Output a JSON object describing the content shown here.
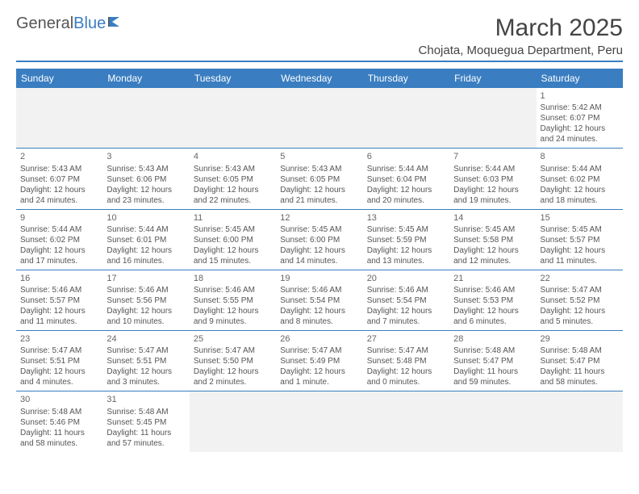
{
  "logo": {
    "text1": "General",
    "text2": "Blue",
    "accent_color": "#3a7ec1"
  },
  "title": "March 2025",
  "subtitle": "Chojata, Moquegua Department, Peru",
  "weekday_header_bg": "#3a7ec1",
  "weekday_header_fg": "#ffffff",
  "weekdays": [
    "Sunday",
    "Monday",
    "Tuesday",
    "Wednesday",
    "Thursday",
    "Friday",
    "Saturday"
  ],
  "blank_bg": "#f2f2f2",
  "border_color": "#3a7ec1",
  "cells": [
    [
      {
        "day": "",
        "lines": []
      },
      {
        "day": "",
        "lines": []
      },
      {
        "day": "",
        "lines": []
      },
      {
        "day": "",
        "lines": []
      },
      {
        "day": "",
        "lines": []
      },
      {
        "day": "",
        "lines": []
      },
      {
        "day": "1",
        "lines": [
          "Sunrise: 5:42 AM",
          "Sunset: 6:07 PM",
          "Daylight: 12 hours",
          "and 24 minutes."
        ]
      }
    ],
    [
      {
        "day": "2",
        "lines": [
          "Sunrise: 5:43 AM",
          "Sunset: 6:07 PM",
          "Daylight: 12 hours",
          "and 24 minutes."
        ]
      },
      {
        "day": "3",
        "lines": [
          "Sunrise: 5:43 AM",
          "Sunset: 6:06 PM",
          "Daylight: 12 hours",
          "and 23 minutes."
        ]
      },
      {
        "day": "4",
        "lines": [
          "Sunrise: 5:43 AM",
          "Sunset: 6:05 PM",
          "Daylight: 12 hours",
          "and 22 minutes."
        ]
      },
      {
        "day": "5",
        "lines": [
          "Sunrise: 5:43 AM",
          "Sunset: 6:05 PM",
          "Daylight: 12 hours",
          "and 21 minutes."
        ]
      },
      {
        "day": "6",
        "lines": [
          "Sunrise: 5:44 AM",
          "Sunset: 6:04 PM",
          "Daylight: 12 hours",
          "and 20 minutes."
        ]
      },
      {
        "day": "7",
        "lines": [
          "Sunrise: 5:44 AM",
          "Sunset: 6:03 PM",
          "Daylight: 12 hours",
          "and 19 minutes."
        ]
      },
      {
        "day": "8",
        "lines": [
          "Sunrise: 5:44 AM",
          "Sunset: 6:02 PM",
          "Daylight: 12 hours",
          "and 18 minutes."
        ]
      }
    ],
    [
      {
        "day": "9",
        "lines": [
          "Sunrise: 5:44 AM",
          "Sunset: 6:02 PM",
          "Daylight: 12 hours",
          "and 17 minutes."
        ]
      },
      {
        "day": "10",
        "lines": [
          "Sunrise: 5:44 AM",
          "Sunset: 6:01 PM",
          "Daylight: 12 hours",
          "and 16 minutes."
        ]
      },
      {
        "day": "11",
        "lines": [
          "Sunrise: 5:45 AM",
          "Sunset: 6:00 PM",
          "Daylight: 12 hours",
          "and 15 minutes."
        ]
      },
      {
        "day": "12",
        "lines": [
          "Sunrise: 5:45 AM",
          "Sunset: 6:00 PM",
          "Daylight: 12 hours",
          "and 14 minutes."
        ]
      },
      {
        "day": "13",
        "lines": [
          "Sunrise: 5:45 AM",
          "Sunset: 5:59 PM",
          "Daylight: 12 hours",
          "and 13 minutes."
        ]
      },
      {
        "day": "14",
        "lines": [
          "Sunrise: 5:45 AM",
          "Sunset: 5:58 PM",
          "Daylight: 12 hours",
          "and 12 minutes."
        ]
      },
      {
        "day": "15",
        "lines": [
          "Sunrise: 5:45 AM",
          "Sunset: 5:57 PM",
          "Daylight: 12 hours",
          "and 11 minutes."
        ]
      }
    ],
    [
      {
        "day": "16",
        "lines": [
          "Sunrise: 5:46 AM",
          "Sunset: 5:57 PM",
          "Daylight: 12 hours",
          "and 11 minutes."
        ]
      },
      {
        "day": "17",
        "lines": [
          "Sunrise: 5:46 AM",
          "Sunset: 5:56 PM",
          "Daylight: 12 hours",
          "and 10 minutes."
        ]
      },
      {
        "day": "18",
        "lines": [
          "Sunrise: 5:46 AM",
          "Sunset: 5:55 PM",
          "Daylight: 12 hours",
          "and 9 minutes."
        ]
      },
      {
        "day": "19",
        "lines": [
          "Sunrise: 5:46 AM",
          "Sunset: 5:54 PM",
          "Daylight: 12 hours",
          "and 8 minutes."
        ]
      },
      {
        "day": "20",
        "lines": [
          "Sunrise: 5:46 AM",
          "Sunset: 5:54 PM",
          "Daylight: 12 hours",
          "and 7 minutes."
        ]
      },
      {
        "day": "21",
        "lines": [
          "Sunrise: 5:46 AM",
          "Sunset: 5:53 PM",
          "Daylight: 12 hours",
          "and 6 minutes."
        ]
      },
      {
        "day": "22",
        "lines": [
          "Sunrise: 5:47 AM",
          "Sunset: 5:52 PM",
          "Daylight: 12 hours",
          "and 5 minutes."
        ]
      }
    ],
    [
      {
        "day": "23",
        "lines": [
          "Sunrise: 5:47 AM",
          "Sunset: 5:51 PM",
          "Daylight: 12 hours",
          "and 4 minutes."
        ]
      },
      {
        "day": "24",
        "lines": [
          "Sunrise: 5:47 AM",
          "Sunset: 5:51 PM",
          "Daylight: 12 hours",
          "and 3 minutes."
        ]
      },
      {
        "day": "25",
        "lines": [
          "Sunrise: 5:47 AM",
          "Sunset: 5:50 PM",
          "Daylight: 12 hours",
          "and 2 minutes."
        ]
      },
      {
        "day": "26",
        "lines": [
          "Sunrise: 5:47 AM",
          "Sunset: 5:49 PM",
          "Daylight: 12 hours",
          "and 1 minute."
        ]
      },
      {
        "day": "27",
        "lines": [
          "Sunrise: 5:47 AM",
          "Sunset: 5:48 PM",
          "Daylight: 12 hours",
          "and 0 minutes."
        ]
      },
      {
        "day": "28",
        "lines": [
          "Sunrise: 5:48 AM",
          "Sunset: 5:47 PM",
          "Daylight: 11 hours",
          "and 59 minutes."
        ]
      },
      {
        "day": "29",
        "lines": [
          "Sunrise: 5:48 AM",
          "Sunset: 5:47 PM",
          "Daylight: 11 hours",
          "and 58 minutes."
        ]
      }
    ],
    [
      {
        "day": "30",
        "lines": [
          "Sunrise: 5:48 AM",
          "Sunset: 5:46 PM",
          "Daylight: 11 hours",
          "and 58 minutes."
        ]
      },
      {
        "day": "31",
        "lines": [
          "Sunrise: 5:48 AM",
          "Sunset: 5:45 PM",
          "Daylight: 11 hours",
          "and 57 minutes."
        ]
      },
      {
        "day": "",
        "lines": []
      },
      {
        "day": "",
        "lines": []
      },
      {
        "day": "",
        "lines": []
      },
      {
        "day": "",
        "lines": []
      },
      {
        "day": "",
        "lines": []
      }
    ]
  ]
}
